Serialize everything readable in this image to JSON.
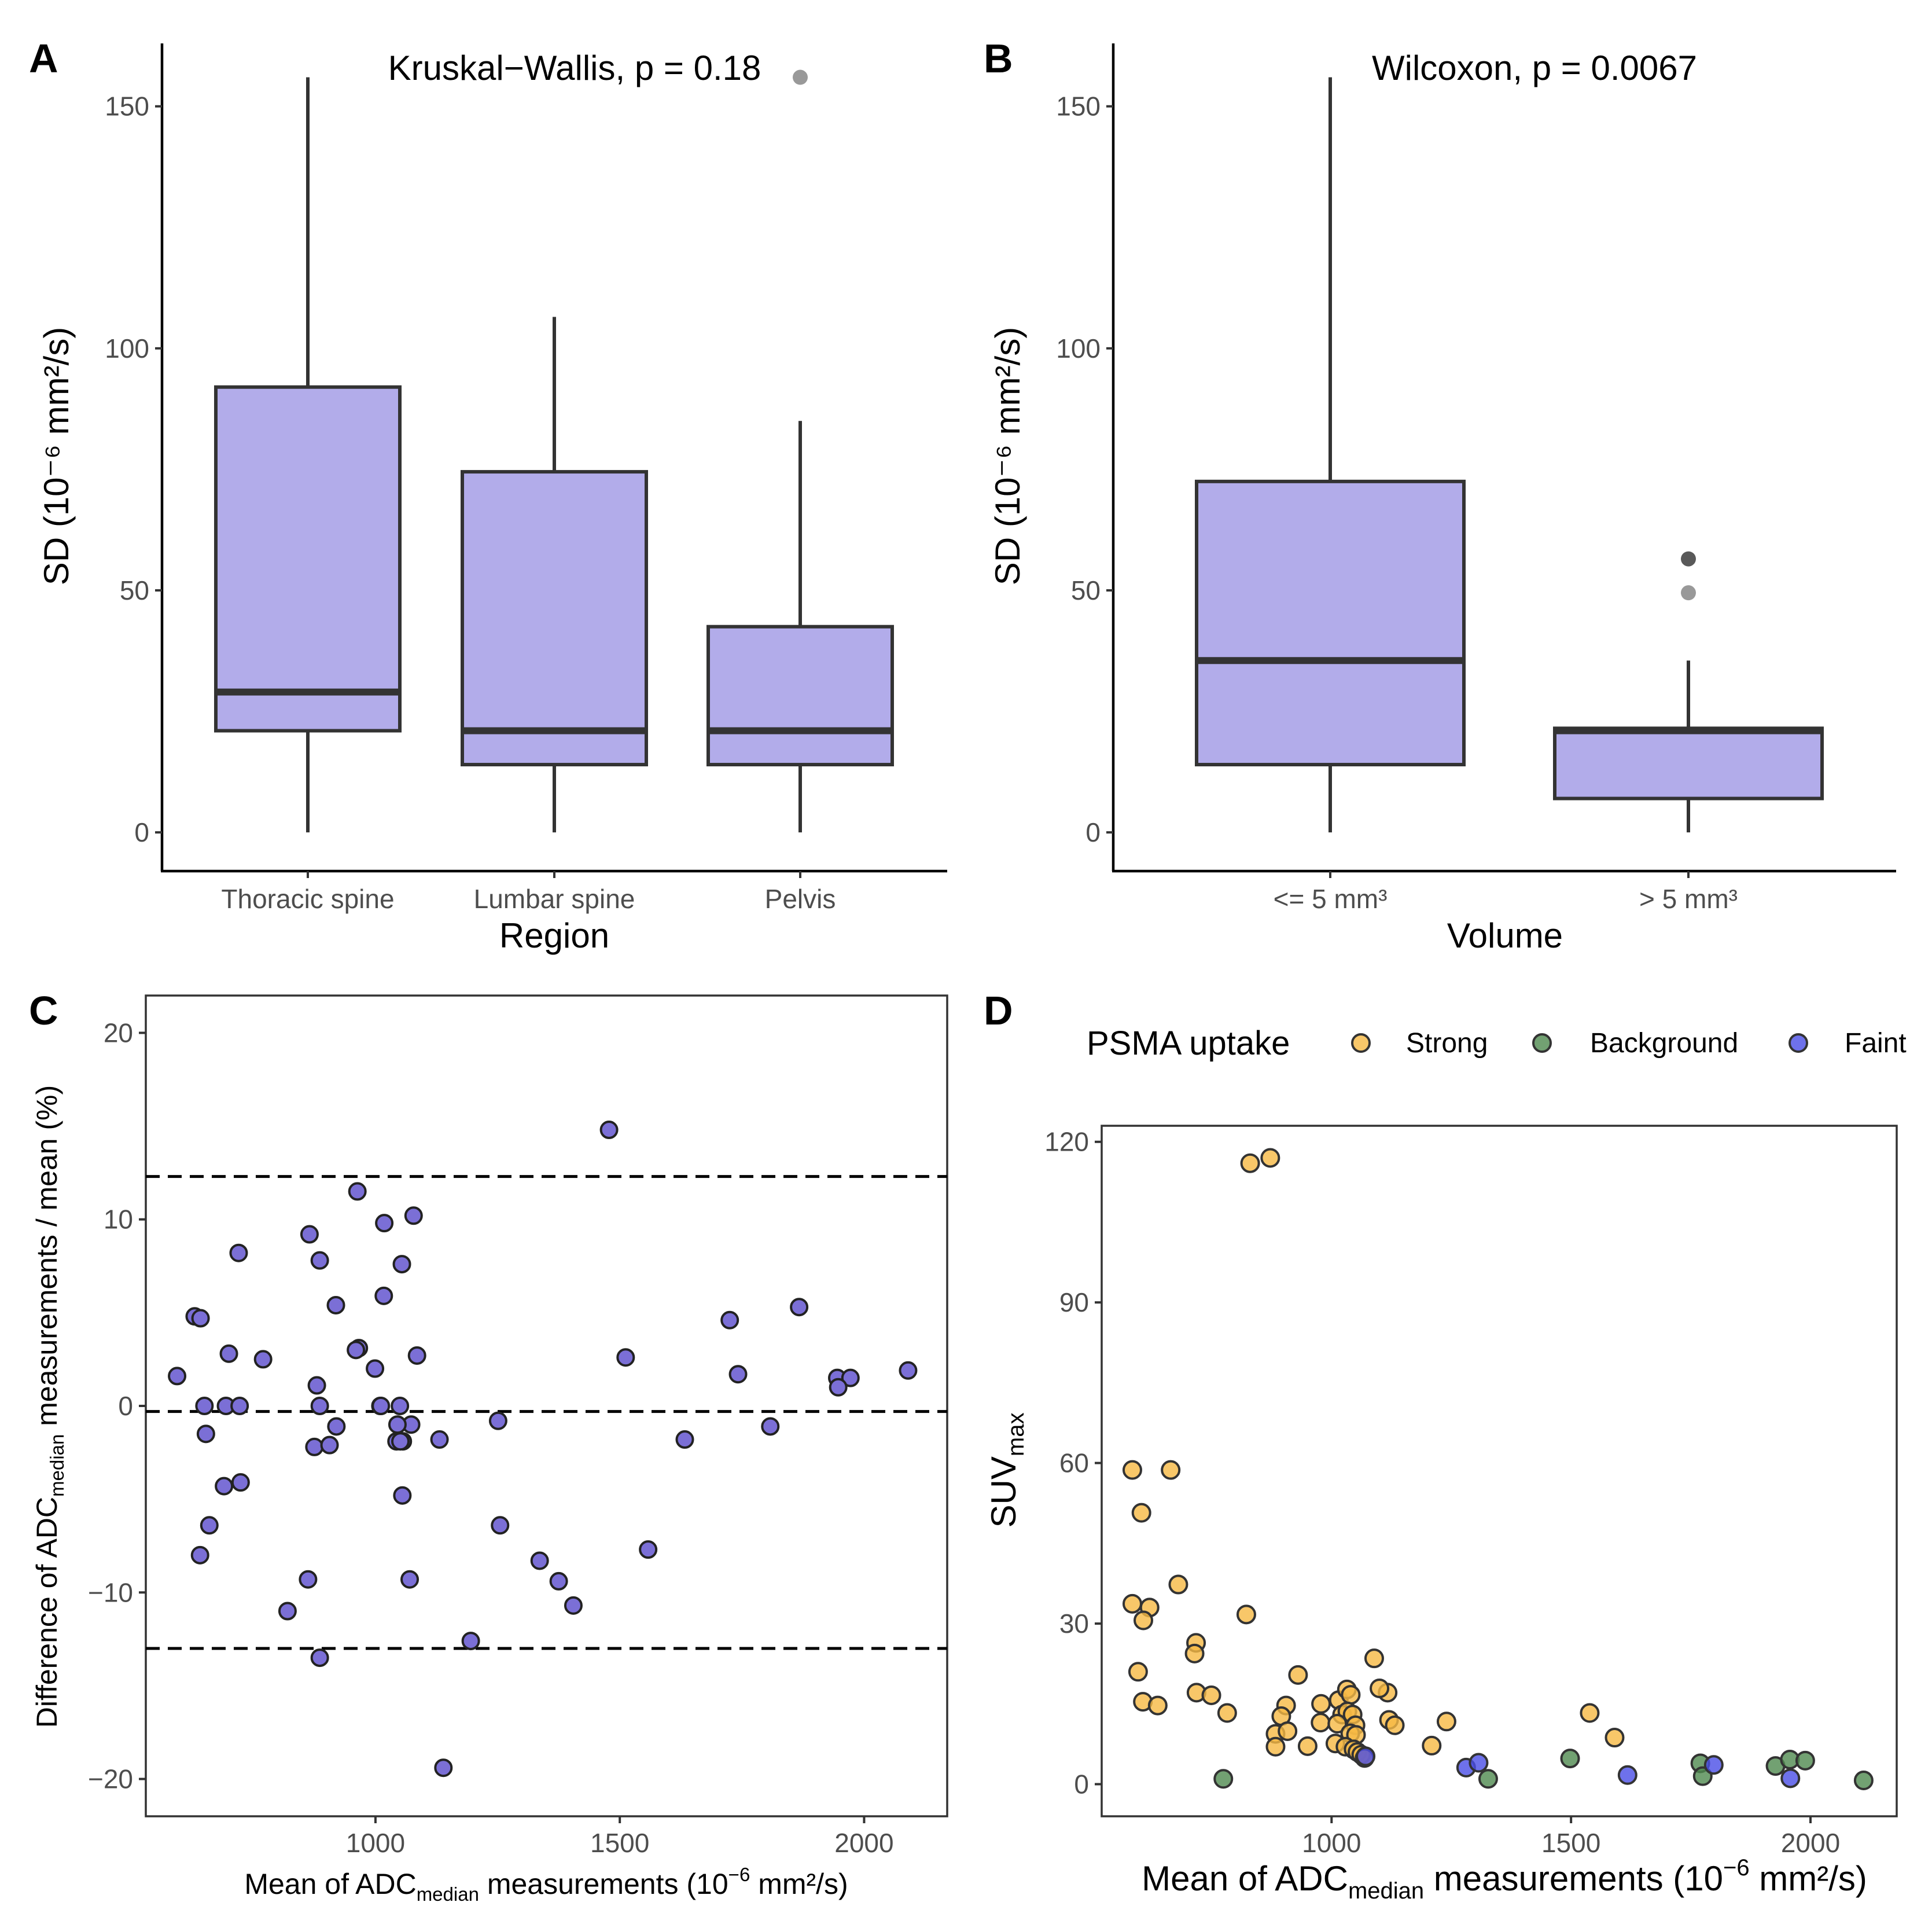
{
  "colors": {
    "box_fill": "#b2acea",
    "point_c": "#7b6fd6",
    "strong": "#f6b943",
    "background": "#4f8a4f",
    "faint": "#4a4ee6",
    "outlier": "#999999",
    "outlier_dark": "#595959"
  },
  "panels": {
    "a": {
      "label": "A"
    },
    "b": {
      "label": "B"
    },
    "c": {
      "label": "C"
    },
    "d": {
      "label": "D"
    }
  },
  "chart_data": [
    {
      "id": "a",
      "type": "box",
      "annotation": "Kruskal−Wallis, p = 0.18",
      "xlabel": "Region",
      "ylabel": "SD (10⁻⁶ mm²/s)",
      "ylim": [
        -8,
        163
      ],
      "yticks": [
        "0",
        "50",
        "100",
        "150"
      ],
      "ytick_values": [
        0,
        50,
        100,
        150
      ],
      "categories": [
        "Thoracic spine",
        "Lumbar spine",
        "Pelvis"
      ],
      "boxes": [
        {
          "min": 0,
          "q1": 21,
          "median": 29,
          "q3": 92,
          "max": 156
        },
        {
          "min": 0,
          "q1": 14,
          "median": 21,
          "q3": 74.5,
          "max": 106.5
        },
        {
          "min": 0,
          "q1": 14,
          "median": 21,
          "q3": 42.5,
          "max": 85
        }
      ],
      "outliers": [
        {
          "category": 2,
          "value": 156,
          "shade": "light"
        }
      ]
    },
    {
      "id": "b",
      "type": "box",
      "annotation": "Wilcoxon, p = 0.0067",
      "xlabel": "Volume",
      "ylabel": "SD (10⁻⁶ mm²/s)",
      "ylim": [
        -8,
        163
      ],
      "yticks": [
        "0",
        "50",
        "100",
        "150"
      ],
      "ytick_values": [
        0,
        50,
        100,
        150
      ],
      "categories": [
        "<= 5 mm³",
        "> 5 mm³"
      ],
      "boxes": [
        {
          "min": 0,
          "q1": 14,
          "median": 35.5,
          "q3": 72.5,
          "max": 156
        },
        {
          "min": 0,
          "q1": 7,
          "median": 21,
          "q3": 21.5,
          "max": 35.5
        }
      ],
      "outliers": [
        {
          "category": 1,
          "value": 56.5,
          "shade": "dark"
        },
        {
          "category": 1,
          "value": 49.5,
          "shade": "light"
        }
      ]
    },
    {
      "id": "c",
      "type": "scatter",
      "xlabel_pre": "Mean of ADC",
      "xlabel_sub": "median",
      "xlabel_post": " measurements (10",
      "xlabel_sup": "−6",
      "xlabel_end": " mm²/s)",
      "ylabel_pre": "Difference of ADC",
      "ylabel_sub": "median",
      "ylabel_post": " measurements / mean (%)",
      "xlim": [
        530,
        2170
      ],
      "ylim": [
        -22,
        22
      ],
      "xticks": [
        "1000",
        "1500",
        "2000"
      ],
      "xtick_values": [
        1000,
        1500,
        2000
      ],
      "yticks": [
        "−20",
        "−10",
        "0",
        "10",
        "20"
      ],
      "ytick_values": [
        -20,
        -10,
        0,
        10,
        20
      ],
      "hlines": [
        12.3,
        -0.3,
        -13
      ],
      "points": [
        [
          1478,
          14.8
        ],
        [
          963,
          11.5
        ],
        [
          1078,
          10.2
        ],
        [
          1018,
          9.8
        ],
        [
          865,
          9.2
        ],
        [
          720,
          8.2
        ],
        [
          886,
          7.8
        ],
        [
          1054,
          7.6
        ],
        [
          1017,
          5.9
        ],
        [
          1867,
          5.3
        ],
        [
          919,
          5.4
        ],
        [
          630,
          4.8
        ],
        [
          642,
          4.7
        ],
        [
          1725,
          4.6
        ],
        [
          966,
          3.1
        ],
        [
          960,
          3.0
        ],
        [
          700,
          2.8
        ],
        [
          1085,
          2.7
        ],
        [
          1512,
          2.6
        ],
        [
          770,
          2.5
        ],
        [
          999,
          2.0
        ],
        [
          2090,
          1.9
        ],
        [
          1742,
          1.7
        ],
        [
          594,
          1.6
        ],
        [
          1945,
          1.5
        ],
        [
          1972,
          1.5
        ],
        [
          1947,
          1.0
        ],
        [
          880,
          1.1
        ],
        [
          650,
          0.0
        ],
        [
          694,
          0.0
        ],
        [
          722,
          0.0
        ],
        [
          886,
          0.0
        ],
        [
          1010,
          0.0
        ],
        [
          1011,
          0.0
        ],
        [
          1050,
          0.0
        ],
        [
          920,
          -1.1
        ],
        [
          1073,
          -1.0
        ],
        [
          1045,
          -1.0
        ],
        [
          1251,
          -0.8
        ],
        [
          1808,
          -1.1
        ],
        [
          653,
          -1.5
        ],
        [
          1043,
          -1.9
        ],
        [
          1056,
          -1.9
        ],
        [
          1051,
          -1.9
        ],
        [
          1131,
          -1.8
        ],
        [
          1633,
          -1.8
        ],
        [
          875,
          -2.2
        ],
        [
          906,
          -2.1
        ],
        [
          724,
          -4.1
        ],
        [
          690,
          -4.3
        ],
        [
          1055,
          -4.8
        ],
        [
          1255,
          -6.4
        ],
        [
          660,
          -6.4
        ],
        [
          1558,
          -7.7
        ],
        [
          641,
          -8.0
        ],
        [
          1336,
          -8.3
        ],
        [
          1375,
          -9.4
        ],
        [
          862,
          -9.3
        ],
        [
          1070,
          -9.3
        ],
        [
          1405,
          -10.7
        ],
        [
          820,
          -11.0
        ],
        [
          1195,
          -12.6
        ],
        [
          886,
          -13.5
        ],
        [
          1139,
          -19.4
        ]
      ]
    },
    {
      "id": "d",
      "type": "scatter",
      "xlabel_pre": "Mean of ADC",
      "xlabel_sub": "median",
      "xlabel_post": " measurements (10",
      "xlabel_sup": "−6",
      "xlabel_end": " mm²/s)",
      "ylabel_pre": "SUV",
      "ylabel_sub": "max",
      "xlim": [
        520,
        2180
      ],
      "ylim": [
        -6,
        123
      ],
      "xticks": [
        "1000",
        "1500",
        "2000"
      ],
      "xtick_values": [
        1000,
        1500,
        2000
      ],
      "yticks": [
        "0",
        "30",
        "60",
        "90",
        "120"
      ],
      "ytick_values": [
        0,
        30,
        60,
        90,
        120
      ],
      "legend": {
        "title": "PSMA uptake",
        "position": "top",
        "entries": [
          "Strong",
          "Background",
          "Faint"
        ]
      },
      "series": [
        {
          "name": "Strong",
          "points": [
            [
              872,
              117
            ],
            [
              830,
              116
            ],
            [
              584,
              58.7
            ],
            [
              664,
              58.7
            ],
            [
              603,
              50.7
            ],
            [
              680,
              37.3
            ],
            [
              584,
              33.7
            ],
            [
              620,
              33.0
            ],
            [
              607,
              30.6
            ],
            [
              822,
              31.7
            ],
            [
              717,
              26.4
            ],
            [
              714,
              24.4
            ],
            [
              1089,
              23.5
            ],
            [
              596,
              21.0
            ],
            [
              930,
              20.4
            ],
            [
              1015,
              15.7
            ],
            [
              1032,
              17.7
            ],
            [
              1040,
              16.7
            ],
            [
              1117,
              17.1
            ],
            [
              1100,
              17.9
            ],
            [
              978,
              15.0
            ],
            [
              718,
              17.1
            ],
            [
              749,
              16.6
            ],
            [
              606,
              15.4
            ],
            [
              905,
              14.7
            ],
            [
              637,
              14.7
            ],
            [
              1022,
              13.0
            ],
            [
              895,
              12.7
            ],
            [
              1033,
              13.6
            ],
            [
              1044,
              13.0
            ],
            [
              1120,
              12.0
            ],
            [
              1132,
              11.0
            ],
            [
              782,
              13.3
            ],
            [
              1539,
              13.3
            ],
            [
              1240,
              11.7
            ],
            [
              977,
              11.5
            ],
            [
              1012,
              11.3
            ],
            [
              1050,
              11.0
            ],
            [
              883,
              9.4
            ],
            [
              908,
              9.9
            ],
            [
              1039,
              9.5
            ],
            [
              1051,
              9.2
            ],
            [
              1591,
              8.7
            ],
            [
              883,
              7.0
            ],
            [
              950,
              7.1
            ],
            [
              1008,
              7.6
            ],
            [
              1029,
              7.0
            ],
            [
              1046,
              6.5
            ],
            [
              1054,
              6.0
            ],
            [
              1062,
              5.5
            ],
            [
              1209,
              7.2
            ],
            [
              1069,
              4.9
            ]
          ]
        },
        {
          "name": "Background",
          "points": [
            [
              774,
              1.0
            ],
            [
              1327,
              1.0
            ],
            [
              1498,
              4.8
            ],
            [
              1770,
              3.9
            ],
            [
              1775,
              1.5
            ],
            [
              1927,
              3.4
            ],
            [
              1957,
              4.6
            ],
            [
              1989,
              4.4
            ],
            [
              2111,
              0.7
            ]
          ]
        },
        {
          "name": "Faint",
          "points": [
            [
              1071,
              5.2
            ],
            [
              1281,
              3.1
            ],
            [
              1307,
              4.0
            ],
            [
              1618,
              1.7
            ],
            [
              1798,
              3.6
            ],
            [
              1958,
              1.1
            ]
          ]
        }
      ]
    }
  ]
}
